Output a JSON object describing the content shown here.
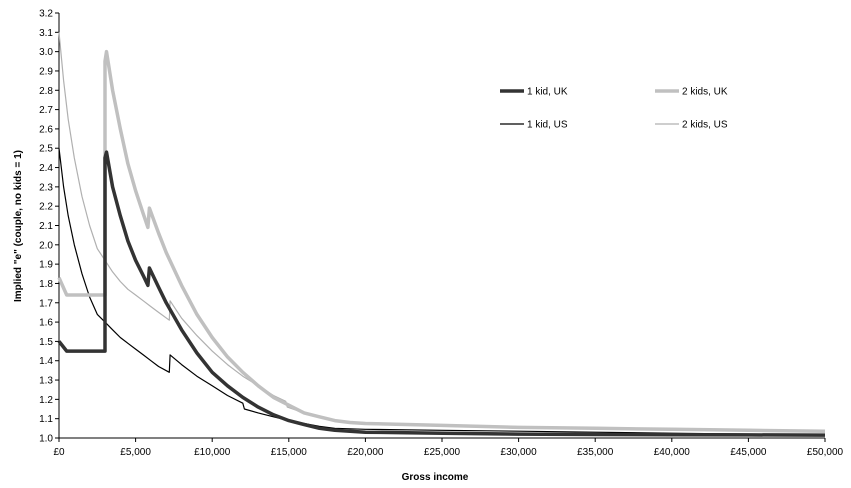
{
  "chart_data": {
    "type": "line",
    "title": "",
    "xlabel": "Gross income",
    "ylabel": "Implied \"e\" (couple, no kids = 1)",
    "xlim": [
      0,
      50000
    ],
    "ylim": [
      1.0,
      3.2
    ],
    "x_ticks": [
      0,
      5000,
      10000,
      15000,
      20000,
      25000,
      30000,
      35000,
      40000,
      45000,
      50000
    ],
    "x_tick_labels": [
      "£0",
      "£5,000",
      "£10,000",
      "£15,000",
      "£20,000",
      "£25,000",
      "£30,000",
      "£35,000",
      "£40,000",
      "£45,000",
      "£50,000"
    ],
    "y_ticks": [
      1.0,
      1.1,
      1.2,
      1.3,
      1.4,
      1.5,
      1.6,
      1.7,
      1.8,
      1.9,
      2.0,
      2.1,
      2.2,
      2.3,
      2.4,
      2.5,
      2.6,
      2.7,
      2.8,
      2.9,
      3.0,
      3.1,
      3.2
    ],
    "y_tick_labels": [
      "1.0",
      "1.1",
      "1.2",
      "1.3",
      "1.4",
      "1.5",
      "1.6",
      "1.7",
      "1.8",
      "1.9",
      "2.0",
      "2.1",
      "2.2",
      "2.3",
      "2.4",
      "2.5",
      "2.6",
      "2.7",
      "2.8",
      "2.9",
      "3.0",
      "3.1",
      "3.2"
    ],
    "grid": false,
    "legend_position": "top-right",
    "series": [
      {
        "name": "1 kid, UK",
        "color": "#333333",
        "style": "thick",
        "x": [
          0,
          500,
          3000,
          3000,
          3100,
          3500,
          4000,
          4500,
          5000,
          5500,
          5800,
          5900,
          6500,
          7000,
          8000,
          9000,
          10000,
          11000,
          12000,
          13000,
          14000,
          15000,
          16000,
          17000,
          18000,
          19000,
          20000,
          25000,
          30000,
          35000,
          40000,
          45000,
          50000
        ],
        "y": [
          1.5,
          1.45,
          1.45,
          2.45,
          2.48,
          2.3,
          2.15,
          2.02,
          1.92,
          1.84,
          1.79,
          1.88,
          1.78,
          1.7,
          1.56,
          1.44,
          1.34,
          1.27,
          1.21,
          1.16,
          1.12,
          1.09,
          1.07,
          1.05,
          1.04,
          1.035,
          1.03,
          1.025,
          1.02,
          1.018,
          1.017,
          1.016,
          1.015
        ]
      },
      {
        "name": "2 kids, UK",
        "color": "#c0c0c0",
        "style": "thick",
        "x": [
          0,
          500,
          3000,
          3000,
          3100,
          3500,
          4000,
          4500,
          5000,
          5500,
          5800,
          5900,
          6500,
          7000,
          8000,
          9000,
          10000,
          11000,
          12000,
          13000,
          14000,
          15000,
          16000,
          17000,
          18000,
          19000,
          20000,
          25000,
          30000,
          35000,
          40000,
          45000,
          50000
        ],
        "y": [
          1.83,
          1.74,
          1.74,
          2.95,
          3.0,
          2.8,
          2.6,
          2.42,
          2.28,
          2.16,
          2.09,
          2.19,
          2.06,
          1.96,
          1.79,
          1.64,
          1.52,
          1.42,
          1.34,
          1.27,
          1.21,
          1.17,
          1.13,
          1.11,
          1.09,
          1.08,
          1.075,
          1.065,
          1.055,
          1.05,
          1.045,
          1.04,
          1.035
        ]
      },
      {
        "name": "1 kid, US",
        "color": "#000000",
        "style": "thin",
        "x": [
          0,
          300,
          600,
          1000,
          1500,
          2000,
          2500,
          3000,
          3500,
          4000,
          4500,
          5000,
          5500,
          6000,
          6500,
          7200,
          7250,
          8000,
          9000,
          10000,
          11000,
          12000,
          12100,
          13000,
          14000,
          15000,
          16000,
          17000,
          18000,
          20000,
          25000,
          30000,
          35000,
          40000,
          45000,
          50000
        ],
        "y": [
          2.5,
          2.3,
          2.15,
          2.0,
          1.85,
          1.73,
          1.64,
          1.6,
          1.56,
          1.52,
          1.49,
          1.46,
          1.43,
          1.4,
          1.37,
          1.34,
          1.43,
          1.38,
          1.32,
          1.27,
          1.22,
          1.18,
          1.15,
          1.13,
          1.11,
          1.09,
          1.075,
          1.06,
          1.05,
          1.045,
          1.04,
          1.035,
          1.03,
          1.025,
          1.02,
          1.02
        ]
      },
      {
        "name": "2 kids, US",
        "color": "#b0b0b0",
        "style": "thin",
        "x": [
          0,
          300,
          600,
          1000,
          1500,
          2000,
          2500,
          3000,
          3500,
          4000,
          4500,
          5000,
          5500,
          6000,
          6500,
          7200,
          7250,
          8000,
          9000,
          10000,
          11000,
          12000,
          13000,
          14000,
          14800,
          14900,
          16000,
          17000,
          18000,
          19000,
          20000,
          25000,
          30000,
          35000,
          40000,
          45000,
          50000
        ],
        "y": [
          3.1,
          2.85,
          2.65,
          2.45,
          2.25,
          2.1,
          1.98,
          1.92,
          1.86,
          1.81,
          1.77,
          1.74,
          1.71,
          1.68,
          1.65,
          1.61,
          1.71,
          1.62,
          1.53,
          1.45,
          1.38,
          1.32,
          1.27,
          1.22,
          1.19,
          1.16,
          1.13,
          1.11,
          1.09,
          1.08,
          1.075,
          1.065,
          1.055,
          1.05,
          1.045,
          1.04,
          1.035
        ]
      }
    ]
  }
}
